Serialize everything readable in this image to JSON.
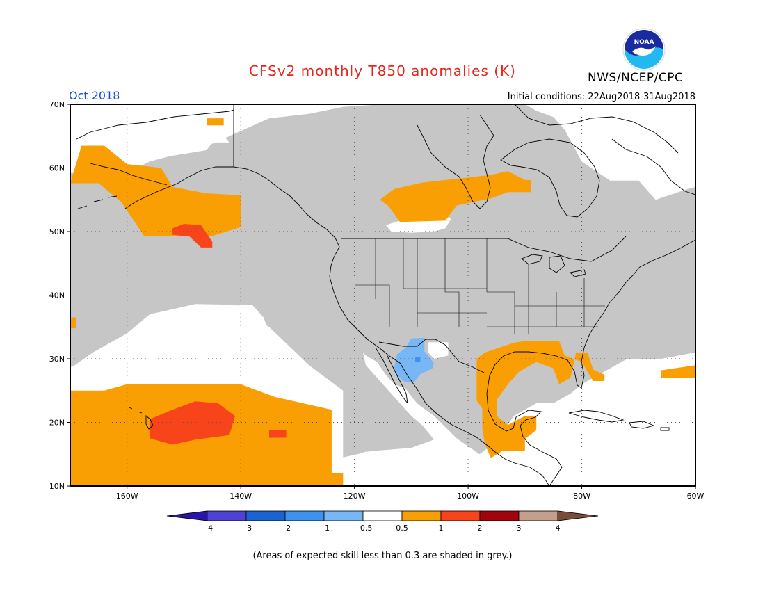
{
  "header": {
    "title": "CFSv2 monthly T850 anomalies (K)",
    "month": "Oct 2018",
    "initial_conditions": "Initial conditions: 22Aug2018-31Aug2018",
    "agency": "NWS/NCEP/CPC",
    "logo_text": "NOAA"
  },
  "map": {
    "projection": "equirectangular",
    "lon_range": [
      -170,
      -60
    ],
    "lat_range": [
      10,
      70
    ],
    "lat_ticks": [
      {
        "value": 70,
        "label": "70N"
      },
      {
        "value": 60,
        "label": "60N"
      },
      {
        "value": 50,
        "label": "50N"
      },
      {
        "value": 40,
        "label": "40N"
      },
      {
        "value": 30,
        "label": "30N"
      },
      {
        "value": 20,
        "label": "20N"
      },
      {
        "value": 10,
        "label": "10N"
      }
    ],
    "lon_ticks": [
      {
        "value": -160,
        "label": "160W"
      },
      {
        "value": -140,
        "label": "140W"
      },
      {
        "value": -120,
        "label": "120W"
      },
      {
        "value": -100,
        "label": "100W"
      },
      {
        "value": -80,
        "label": "80W"
      },
      {
        "value": -60,
        "label": "60W"
      }
    ],
    "grid": "dotted",
    "colors": {
      "low_skill_grey": "#c6c6c6",
      "pos_0_5_to_1": "#f99f04",
      "pos_1_to_2": "#f8441a",
      "neg_0_5_to_1": "#77b7f6",
      "neg_1_to_2": "#3d91f0",
      "coast": "#000000"
    },
    "anomaly_regions": [
      {
        "class": "pos_0_5_to_1",
        "lonlat": [
          [
            -172,
            25
          ],
          [
            -164,
            25
          ],
          [
            -160,
            26
          ],
          [
            -150,
            26
          ],
          [
            -140,
            26
          ],
          [
            -134,
            24
          ],
          [
            -124,
            22
          ],
          [
            -124,
            12
          ],
          [
            -122,
            12
          ],
          [
            -122,
            10
          ],
          [
            -172,
            10
          ]
        ]
      },
      {
        "class": "pos_1_to_2",
        "lonlat": [
          [
            -156,
            20.5
          ],
          [
            -152,
            22
          ],
          [
            -148,
            23.3
          ],
          [
            -144,
            23
          ],
          [
            -141,
            21
          ],
          [
            -142,
            18
          ],
          [
            -148,
            17.3
          ],
          [
            -152,
            16.5
          ],
          [
            -156,
            17.5
          ]
        ]
      },
      {
        "class": "pos_1_to_2",
        "lonlat": [
          [
            -135,
            18.8
          ],
          [
            -132,
            18.8
          ],
          [
            -132,
            17.6
          ],
          [
            -135,
            17.6
          ]
        ]
      },
      {
        "class": "pos_0_5_to_1",
        "lonlat": [
          [
            -168,
            63.5
          ],
          [
            -164,
            63.5
          ],
          [
            -160,
            60.6
          ],
          [
            -154,
            60
          ],
          [
            -152,
            57
          ],
          [
            -146,
            56
          ],
          [
            -140,
            55.7
          ],
          [
            -140,
            50.7
          ],
          [
            -145,
            49.3
          ],
          [
            -153,
            49.3
          ],
          [
            -157,
            49.3
          ],
          [
            -161,
            54.6
          ],
          [
            -165,
            57.6
          ],
          [
            -170,
            57.6
          ]
        ]
      },
      {
        "class": "pos_1_to_2",
        "lonlat": [
          [
            -152,
            50.5
          ],
          [
            -150,
            51.2
          ],
          [
            -147,
            51
          ],
          [
            -145,
            48.4
          ],
          [
            -145,
            47.5
          ],
          [
            -147,
            47.5
          ],
          [
            -149,
            49.2
          ],
          [
            -152,
            49.5
          ]
        ]
      },
      {
        "class": "pos_0_5_to_1",
        "lonlat": [
          [
            -146,
            67.8
          ],
          [
            -143,
            67.8
          ],
          [
            -143,
            66.7
          ],
          [
            -146,
            66.7
          ]
        ]
      },
      {
        "class": "pos_0_5_to_1",
        "lonlat": [
          [
            -113,
            56.7
          ],
          [
            -108,
            57.7
          ],
          [
            -100,
            58.5
          ],
          [
            -96,
            58.9
          ],
          [
            -93,
            59.5
          ],
          [
            -90,
            58.1
          ],
          [
            -89,
            58.1
          ],
          [
            -89,
            56.2
          ],
          [
            -93,
            56.2
          ],
          [
            -96,
            55.2
          ],
          [
            -102,
            54.1
          ],
          [
            -104,
            51.7
          ],
          [
            -112,
            51.5
          ],
          [
            -114,
            54
          ],
          [
            -115.5,
            55
          ]
        ]
      },
      {
        "class": "pos_0_5_to_1",
        "lonlat": [
          [
            -92,
            32.5
          ],
          [
            -90,
            32.8
          ],
          [
            -84,
            32.8
          ],
          [
            -83,
            30.5
          ],
          [
            -80,
            29.5
          ],
          [
            -78,
            26.5
          ],
          [
            -76,
            26.5
          ],
          [
            -76,
            27.5
          ],
          [
            -78,
            28.3
          ],
          [
            -79,
            31
          ],
          [
            -81,
            31
          ],
          [
            -82,
            27
          ],
          [
            -84,
            26
          ],
          [
            -85,
            28.5
          ],
          [
            -88,
            29.5
          ],
          [
            -91,
            28
          ],
          [
            -93,
            26
          ],
          [
            -95,
            23.5
          ],
          [
            -95,
            21
          ],
          [
            -93,
            19.6
          ],
          [
            -90,
            21
          ],
          [
            -88,
            21
          ],
          [
            -88,
            18.8
          ],
          [
            -90,
            17.4
          ],
          [
            -90,
            15.5
          ],
          [
            -94,
            15.5
          ],
          [
            -96,
            14.4
          ],
          [
            -97,
            16.5
          ],
          [
            -97.5,
            19
          ],
          [
            -97.5,
            22.2
          ],
          [
            -98.5,
            23.4
          ],
          [
            -98.5,
            30
          ],
          [
            -97,
            31
          ]
        ]
      },
      {
        "class": "pos_0_5_to_1",
        "lonlat": [
          [
            -66,
            28.2
          ],
          [
            -60,
            29
          ],
          [
            -60,
            27
          ],
          [
            -66,
            27
          ]
        ]
      },
      {
        "class": "pos_0_5_to_1",
        "lonlat": [
          [
            -171,
            36.5
          ],
          [
            -169,
            36.5
          ],
          [
            -169,
            34.8
          ],
          [
            -171,
            34.8
          ]
        ]
      },
      {
        "class": "neg_0_5_to_1",
        "lonlat": [
          [
            -112.5,
            30.7
          ],
          [
            -111,
            31.7
          ],
          [
            -110,
            33.2
          ],
          [
            -107.7,
            33.3
          ],
          [
            -107.7,
            31.2
          ],
          [
            -106,
            29.3
          ],
          [
            -106.3,
            28.5
          ],
          [
            -108.5,
            27.5
          ],
          [
            -109.5,
            26.3
          ],
          [
            -111,
            26.3
          ],
          [
            -112.5,
            27.3
          ],
          [
            -113,
            28.5
          ]
        ]
      },
      {
        "class": "neg_1_to_2",
        "lonlat": [
          [
            -109.3,
            30.3
          ],
          [
            -108.4,
            30.3
          ],
          [
            -108.4,
            29.5
          ],
          [
            -109.3,
            29.5
          ]
        ]
      }
    ],
    "low_skill_regions": [
      {
        "lonlat": [
          [
            -172,
            59.2
          ],
          [
            -160,
            59.2
          ],
          [
            -156,
            61
          ],
          [
            -146,
            63.4
          ],
          [
            -140,
            65.8
          ],
          [
            -135,
            67.8
          ],
          [
            -128,
            68.5
          ],
          [
            -122,
            69.6
          ],
          [
            -115,
            70
          ],
          [
            -90,
            70
          ],
          [
            -88,
            69
          ],
          [
            -85,
            68
          ],
          [
            -83,
            66
          ],
          [
            -80,
            61
          ],
          [
            -75,
            58
          ],
          [
            -70,
            58
          ],
          [
            -68,
            56
          ],
          [
            -67,
            55
          ],
          [
            -62,
            56.5
          ],
          [
            -60,
            57
          ],
          [
            -60,
            31
          ],
          [
            -66,
            30
          ],
          [
            -72,
            30
          ],
          [
            -76,
            28
          ],
          [
            -80,
            26
          ],
          [
            -82,
            24.5
          ],
          [
            -85,
            23
          ],
          [
            -88,
            23
          ],
          [
            -92,
            21
          ],
          [
            -95,
            17
          ],
          [
            -98,
            15
          ],
          [
            -102,
            17.5
          ],
          [
            -106,
            21
          ],
          [
            -109,
            23
          ],
          [
            -111,
            25.3
          ],
          [
            -113,
            26
          ],
          [
            -114.5,
            27.5
          ],
          [
            -116,
            29.5
          ],
          [
            -117,
            30
          ],
          [
            -118,
            30.5
          ],
          [
            -118.5,
            31
          ],
          [
            -118,
            29
          ],
          [
            -114,
            25
          ],
          [
            -112,
            23
          ],
          [
            -110,
            21
          ],
          [
            -108,
            19.5
          ],
          [
            -106,
            17.3
          ],
          [
            -110,
            16
          ],
          [
            -117,
            15.5
          ],
          [
            -122,
            14.5
          ],
          [
            -122,
            25
          ],
          [
            -128,
            29
          ],
          [
            -135,
            35
          ],
          [
            -141,
            38.5
          ],
          [
            -148,
            38.6
          ],
          [
            -156,
            37
          ],
          [
            -160,
            34
          ],
          [
            -166,
            31
          ],
          [
            -170,
            28.5
          ],
          [
            -172,
            28
          ]
        ]
      }
    ],
    "white_regions": [
      {
        "lonlat": [
          [
            -172,
            28.5
          ],
          [
            -168,
            29
          ],
          [
            -164,
            31
          ],
          [
            -156,
            34
          ],
          [
            -150,
            36.5
          ],
          [
            -143,
            38.3
          ],
          [
            -138,
            38.5
          ],
          [
            -136,
            36.5
          ],
          [
            -135,
            34.2
          ],
          [
            -136,
            31.8
          ],
          [
            -140,
            31
          ],
          [
            -146,
            29.8
          ],
          [
            -152,
            28.3
          ],
          [
            -156,
            26.3
          ],
          [
            -162,
            25.6
          ],
          [
            -166,
            25.6
          ],
          [
            -172,
            25
          ]
        ]
      },
      {
        "lonlat": [
          [
            -172,
            68.2
          ],
          [
            -158,
            68.5
          ],
          [
            -152,
            66.6
          ],
          [
            -150,
            66
          ],
          [
            -147,
            66.1
          ],
          [
            -143,
            65
          ],
          [
            -142,
            64
          ],
          [
            -145,
            64
          ],
          [
            -146,
            62.8
          ],
          [
            -150,
            62.2
          ],
          [
            -155,
            61.5
          ],
          [
            -163,
            61
          ],
          [
            -166,
            61.8
          ],
          [
            -170,
            62.4
          ],
          [
            -172,
            63
          ]
        ]
      },
      {
        "lonlat": [
          [
            -80,
            69
          ],
          [
            -75,
            66
          ],
          [
            -70,
            61
          ],
          [
            -66,
            55.5
          ],
          [
            -62,
            57
          ],
          [
            -60,
            57.5
          ],
          [
            -60,
            70
          ]
        ]
      },
      {
        "lonlat": [
          [
            -107,
            32.6
          ],
          [
            -103.5,
            32.6
          ],
          [
            -103.5,
            30.5
          ],
          [
            -106,
            30
          ],
          [
            -107,
            31
          ]
        ]
      },
      {
        "lonlat": [
          [
            -114.5,
            51
          ],
          [
            -110,
            52.3
          ],
          [
            -106,
            53
          ],
          [
            -104,
            52.5
          ],
          [
            -103,
            52
          ],
          [
            -104,
            50.5
          ],
          [
            -106,
            50
          ],
          [
            -110,
            49.8
          ],
          [
            -113.5,
            50
          ]
        ]
      },
      {
        "lonlat": [
          [
            -122,
            14.2
          ],
          [
            -118,
            15.4
          ],
          [
            -111,
            15.8
          ],
          [
            -106,
            16.8
          ],
          [
            -102,
            16.2
          ],
          [
            -96,
            14.2
          ],
          [
            -91,
            13.9
          ],
          [
            -88,
            11.5
          ],
          [
            -84,
            10
          ],
          [
            -122,
            10
          ]
        ]
      },
      {
        "lonlat": [
          [
            -76,
            28
          ],
          [
            -72,
            29.5
          ],
          [
            -66,
            29.5
          ],
          [
            -60,
            30.5
          ],
          [
            -60,
            10
          ],
          [
            -80,
            10
          ],
          [
            -80,
            20
          ],
          [
            -78,
            24
          ]
        ]
      }
    ]
  },
  "colorbar": {
    "labels": [
      "−4",
      "−3",
      "−2",
      "−1",
      "−0.5",
      "0.5",
      "1",
      "2",
      "3",
      "4"
    ],
    "colors": [
      "#2a15a8",
      "#4e42d6",
      "#1b63d4",
      "#3d91f0",
      "#77b7f6",
      "#ffffff",
      "#f99f04",
      "#f8441a",
      "#a1040c",
      "#c49f8e",
      "#7b4b3a"
    ]
  },
  "footnote": "(Areas of expected skill less than 0.3 are shaded in grey.)"
}
